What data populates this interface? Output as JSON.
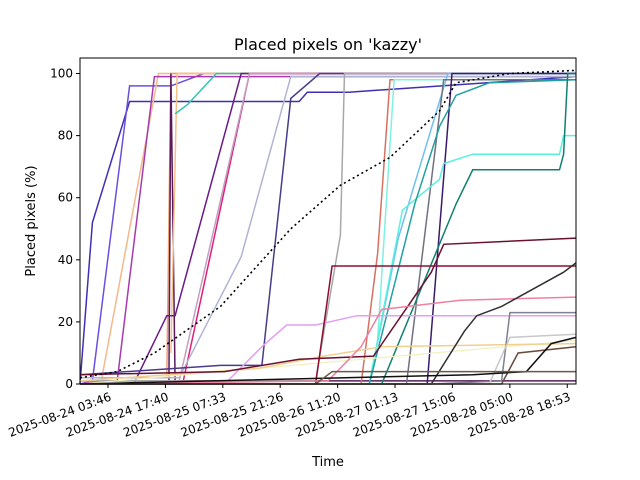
{
  "chart_data": {
    "type": "line",
    "title": "Placed pixels on 'kazzy'",
    "xlabel": "Time",
    "ylabel": "Placed pixels (%)",
    "xlim": [
      "2025-08-23 21:00",
      "2025-08-28 21:00"
    ],
    "ylim": [
      0,
      105
    ],
    "x_ticks": [
      "2025-08-24 03:46",
      "2025-08-24 17:40",
      "2025-08-25 07:33",
      "2025-08-25 21:26",
      "2025-08-26 11:20",
      "2025-08-27 01:13",
      "2025-08-27 15:06",
      "2025-08-28 05:00",
      "2025-08-28 18:53"
    ],
    "y_ticks": [
      0,
      20,
      40,
      60,
      80,
      100
    ],
    "grid": false,
    "legend": "none",
    "series": [
      {
        "color": "#3f2fb5",
        "style": "solid",
        "points": [
          [
            "2025-08-23 21:00",
            0
          ],
          [
            "2025-08-24 00:00",
            52
          ],
          [
            "2025-08-24 09:00",
            91
          ],
          [
            "2025-08-26 02:00",
            91
          ],
          [
            "2025-08-26 04:00",
            94
          ],
          [
            "2025-08-26 14:00",
            94
          ],
          [
            "2025-08-28 21:00",
            99
          ]
        ]
      },
      {
        "color": "#6a4fe0",
        "style": "solid",
        "points": [
          [
            "2025-08-23 21:00",
            0
          ],
          [
            "2025-08-24 00:00",
            1
          ],
          [
            "2025-08-24 09:00",
            96
          ],
          [
            "2025-08-24 19:00",
            96
          ],
          [
            "2025-08-25 03:00",
            100
          ],
          [
            "2025-08-28 21:00",
            100
          ]
        ]
      },
      {
        "color": "#f4b88a",
        "style": "solid",
        "points": [
          [
            "2025-08-23 21:00",
            0
          ],
          [
            "2025-08-24 02:00",
            0
          ],
          [
            "2025-08-24 16:00",
            100
          ],
          [
            "2025-08-28 21:00",
            100
          ]
        ]
      },
      {
        "color": "#a83ab0",
        "style": "solid",
        "points": [
          [
            "2025-08-23 21:00",
            0
          ],
          [
            "2025-08-24 02:00",
            1
          ],
          [
            "2025-08-24 06:00",
            1
          ],
          [
            "2025-08-24 09:00",
            34
          ],
          [
            "2025-08-24 15:00",
            99
          ],
          [
            "2025-08-28 21:00",
            99
          ]
        ]
      },
      {
        "color": "#f0a070",
        "style": "solid",
        "points": [
          [
            "2025-08-23 21:00",
            2
          ],
          [
            "2025-08-24 18:00",
            2
          ],
          [
            "2025-08-24 19:00",
            100
          ],
          [
            "2025-08-28 21:00",
            100
          ]
        ]
      },
      {
        "color": "#5a1a5a",
        "style": "solid",
        "points": [
          [
            "2025-08-23 21:00",
            0
          ],
          [
            "2025-08-24 10:00",
            0
          ],
          [
            "2025-08-24 18:30",
            0
          ],
          [
            "2025-08-24 19:00",
            100
          ],
          [
            "2025-08-24 20:00",
            1
          ],
          [
            "2025-08-25 15:00",
            1
          ],
          [
            "2025-08-28 21:00",
            1
          ]
        ]
      },
      {
        "color": "#f4c08a",
        "style": "solid",
        "points": [
          [
            "2025-08-24 19:00",
            10
          ],
          [
            "2025-08-24 20:30",
            100
          ],
          [
            "2025-08-28 21:00",
            100
          ]
        ]
      },
      {
        "color": "#2ec4b0",
        "style": "solid",
        "points": [
          [
            "2025-08-24 20:00",
            87
          ],
          [
            "2025-08-24 23:00",
            90
          ],
          [
            "2025-08-25 06:00",
            100
          ],
          [
            "2025-08-28 21:00",
            100
          ]
        ]
      },
      {
        "color": "#6a1a8a",
        "style": "solid",
        "points": [
          [
            "2025-08-23 21:00",
            0
          ],
          [
            "2025-08-24 10:00",
            0
          ],
          [
            "2025-08-24 18:00",
            22
          ],
          [
            "2025-08-24 20:00",
            22
          ],
          [
            "2025-08-25 12:00",
            100
          ],
          [
            "2025-08-28 21:00",
            100
          ]
        ]
      },
      {
        "color": "#e0207a",
        "style": "solid",
        "points": [
          [
            "2025-08-23 21:00",
            1
          ],
          [
            "2025-08-24 22:00",
            1
          ],
          [
            "2025-08-25 14:00",
            100
          ],
          [
            "2025-08-28 21:00",
            100
          ]
        ]
      },
      {
        "color": "#c4a0c0",
        "style": "solid",
        "points": [
          [
            "2025-08-23 21:00",
            1
          ],
          [
            "2025-08-24 21:00",
            1
          ],
          [
            "2025-08-25 14:00",
            100
          ],
          [
            "2025-08-28 21:00",
            100
          ]
        ]
      },
      {
        "color": "#b0b4d4",
        "style": "solid",
        "points": [
          [
            "2025-08-23 21:00",
            2
          ],
          [
            "2025-08-24 21:00",
            2
          ],
          [
            "2025-08-25 12:00",
            41
          ],
          [
            "2025-08-26 00:00",
            99
          ],
          [
            "2025-08-28 21:00",
            99
          ]
        ]
      },
      {
        "color": "#4a3a8a",
        "style": "solid",
        "points": [
          [
            "2025-08-23 21:00",
            3
          ],
          [
            "2025-08-25 07:00",
            6
          ],
          [
            "2025-08-25 17:00",
            6
          ],
          [
            "2025-08-26 00:00",
            92
          ],
          [
            "2025-08-26 07:00",
            100
          ],
          [
            "2025-08-28 21:00",
            100
          ]
        ]
      },
      {
        "color": "#a8a8a8",
        "style": "solid",
        "points": [
          [
            "2025-08-23 21:00",
            1
          ],
          [
            "2025-08-26 06:00",
            1
          ],
          [
            "2025-08-26 12:00",
            48
          ],
          [
            "2025-08-26 13:00",
            100
          ],
          [
            "2025-08-28 21:00",
            100
          ]
        ]
      },
      {
        "color": "#d87060",
        "style": "solid",
        "points": [
          [
            "2025-08-23 21:00",
            0
          ],
          [
            "2025-08-26 17:00",
            0
          ],
          [
            "2025-08-26 21:00",
            42
          ],
          [
            "2025-08-27 00:00",
            98
          ],
          [
            "2025-08-28 21:00",
            98
          ]
        ]
      },
      {
        "color": "#80f0e0",
        "style": "solid",
        "points": [
          [
            "2025-08-23 21:00",
            0
          ],
          [
            "2025-08-26 19:00",
            0
          ],
          [
            "2025-08-26 21:00",
            14
          ],
          [
            "2025-08-27 01:00",
            98
          ],
          [
            "2025-08-28 21:00",
            98
          ]
        ]
      },
      {
        "color": "#70c0f0",
        "style": "solid",
        "points": [
          [
            "2025-08-23 21:00",
            0
          ],
          [
            "2025-08-26 19:00",
            0
          ],
          [
            "2025-08-27 02:00",
            47
          ],
          [
            "2025-08-27 14:00",
            100
          ],
          [
            "2025-08-28 21:00",
            100
          ]
        ]
      },
      {
        "color": "#707080",
        "style": "solid",
        "points": [
          [
            "2025-08-23 21:00",
            0
          ],
          [
            "2025-08-27 04:00",
            0
          ],
          [
            "2025-08-27 13:00",
            98
          ],
          [
            "2025-08-28 21:00",
            98
          ]
        ]
      },
      {
        "color": "#3a1a6a",
        "style": "solid",
        "points": [
          [
            "2025-08-23 21:00",
            0
          ],
          [
            "2025-08-27 09:00",
            0
          ],
          [
            "2025-08-27 15:00",
            100
          ],
          [
            "2025-08-28 21:00",
            100
          ]
        ]
      },
      {
        "color": "#5af0e0",
        "style": "solid",
        "points": [
          [
            "2025-08-23 21:00",
            0
          ],
          [
            "2025-08-26 19:00",
            0
          ],
          [
            "2025-08-27 03:00",
            56
          ],
          [
            "2025-08-27 12:00",
            66
          ],
          [
            "2025-08-27 13:00",
            71
          ],
          [
            "2025-08-27 20:00",
            74
          ],
          [
            "2025-08-28 17:00",
            74
          ],
          [
            "2025-08-28 18:00",
            80
          ],
          [
            "2025-08-28 21:00",
            80
          ]
        ]
      },
      {
        "color": "#20a0a0",
        "style": "solid",
        "points": [
          [
            "2025-08-23 21:00",
            0
          ],
          [
            "2025-08-26 19:00",
            0
          ],
          [
            "2025-08-27 06:00",
            58
          ],
          [
            "2025-08-27 12:00",
            83
          ],
          [
            "2025-08-27 16:00",
            93
          ],
          [
            "2025-08-28 00:00",
            97
          ],
          [
            "2025-08-28 21:00",
            98
          ]
        ]
      },
      {
        "color": "#108070",
        "style": "solid",
        "points": [
          [
            "2025-08-23 21:00",
            0
          ],
          [
            "2025-08-26 22:00",
            0
          ],
          [
            "2025-08-27 16:00",
            58
          ],
          [
            "2025-08-27 20:00",
            69
          ],
          [
            "2025-08-28 17:00",
            69
          ],
          [
            "2025-08-28 18:00",
            74
          ],
          [
            "2025-08-28 19:00",
            100
          ],
          [
            "2025-08-28 21:00",
            100
          ]
        ]
      },
      {
        "color": "#f0f0c0",
        "style": "dashed-thin",
        "points": [
          [
            "2025-08-23 21:00",
            0
          ],
          [
            "2025-08-28 21:00",
            14
          ]
        ]
      },
      {
        "color": "#f0d090",
        "style": "solid",
        "points": [
          [
            "2025-08-23 21:00",
            1
          ],
          [
            "2025-08-25 16:00",
            5
          ],
          [
            "2025-08-26 08:00",
            9
          ],
          [
            "2025-08-26 22:00",
            12
          ],
          [
            "2025-08-28 21:00",
            13
          ]
        ]
      },
      {
        "color": "#e0a0f0",
        "style": "solid",
        "points": [
          [
            "2025-08-23 21:00",
            0
          ],
          [
            "2025-08-25 08:00",
            0
          ],
          [
            "2025-08-25 17:00",
            12
          ],
          [
            "2025-08-25 23:00",
            19
          ],
          [
            "2025-08-26 06:00",
            19
          ],
          [
            "2025-08-26 16:00",
            22
          ],
          [
            "2025-08-28 21:00",
            22
          ]
        ]
      },
      {
        "color": "#8a1030",
        "style": "solid",
        "points": [
          [
            "2025-08-23 21:00",
            0
          ],
          [
            "2025-08-25 20:00",
            0
          ],
          [
            "2025-08-26 06:00",
            0
          ],
          [
            "2025-08-26 10:00",
            38
          ],
          [
            "2025-08-28 21:00",
            38
          ]
        ]
      },
      {
        "color": "#6a1030",
        "style": "solid",
        "points": [
          [
            "2025-08-23 21:00",
            3
          ],
          [
            "2025-08-25 08:00",
            4
          ],
          [
            "2025-08-26 02:00",
            8
          ],
          [
            "2025-08-26 20:00",
            9
          ],
          [
            "2025-08-27 10:00",
            36
          ],
          [
            "2025-08-27 13:00",
            45
          ],
          [
            "2025-08-28 21:00",
            47
          ]
        ]
      },
      {
        "color": "#f080a0",
        "style": "solid",
        "points": [
          [
            "2025-08-23 21:00",
            0
          ],
          [
            "2025-08-26 09:00",
            1
          ],
          [
            "2025-08-26 17:00",
            12
          ],
          [
            "2025-08-26 22:00",
            24
          ],
          [
            "2025-08-27 17:00",
            27
          ],
          [
            "2025-08-28 21:00",
            28
          ]
        ]
      },
      {
        "color": "#303030",
        "style": "solid",
        "points": [
          [
            "2025-08-23 21:00",
            0
          ],
          [
            "2025-08-27 10:00",
            0
          ],
          [
            "2025-08-27 18:00",
            17
          ],
          [
            "2025-08-27 21:00",
            22
          ],
          [
            "2025-08-28 03:00",
            25
          ],
          [
            "2025-08-28 18:00",
            36
          ],
          [
            "2025-08-28 21:00",
            39
          ]
        ]
      },
      {
        "color": "#808090",
        "style": "solid",
        "points": [
          [
            "2025-08-23 21:00",
            0
          ],
          [
            "2025-08-27 10:00",
            0
          ],
          [
            "2025-08-28 03:00",
            1
          ],
          [
            "2025-08-28 05:00",
            23
          ],
          [
            "2025-08-28 21:00",
            23
          ]
        ]
      },
      {
        "color": "#c8c8c8",
        "style": "solid",
        "points": [
          [
            "2025-08-23 21:00",
            0
          ],
          [
            "2025-08-28 00:00",
            0
          ],
          [
            "2025-08-28 05:00",
            15
          ],
          [
            "2025-08-28 21:00",
            16
          ]
        ]
      },
      {
        "color": "#6a4a3a",
        "style": "solid",
        "points": [
          [
            "2025-08-23 21:00",
            0
          ],
          [
            "2025-08-27 10:00",
            0
          ],
          [
            "2025-08-28 03:00",
            0
          ],
          [
            "2025-08-28 07:00",
            10
          ],
          [
            "2025-08-28 21:00",
            12
          ]
        ]
      },
      {
        "color": "#101010",
        "style": "solid",
        "points": [
          [
            "2025-08-23 21:00",
            0
          ],
          [
            "2025-08-27 20:00",
            3
          ],
          [
            "2025-08-28 09:00",
            4
          ],
          [
            "2025-08-28 15:00",
            13
          ],
          [
            "2025-08-28 21:00",
            15
          ]
        ]
      },
      {
        "color": "#6a5a4a",
        "style": "solid",
        "points": [
          [
            "2025-08-23 21:00",
            0
          ],
          [
            "2025-08-26 06:00",
            0
          ],
          [
            "2025-08-26 10:00",
            4
          ],
          [
            "2025-08-27 12:00",
            4
          ],
          [
            "2025-08-28 21:00",
            4
          ]
        ]
      },
      {
        "color": "#000000",
        "style": "dotted",
        "points": [
          [
            "2025-08-23 21:00",
            2
          ],
          [
            "2025-08-24 06:00",
            4
          ],
          [
            "2025-08-24 15:00",
            10
          ],
          [
            "2025-08-25 07:00",
            25
          ],
          [
            "2025-08-26 00:00",
            50
          ],
          [
            "2025-08-26 12:00",
            64
          ],
          [
            "2025-08-27 00:00",
            73
          ],
          [
            "2025-08-27 12:00",
            88
          ],
          [
            "2025-08-27 16:00",
            97
          ],
          [
            "2025-08-28 05:00",
            100
          ],
          [
            "2025-08-28 21:00",
            101
          ]
        ]
      }
    ]
  }
}
